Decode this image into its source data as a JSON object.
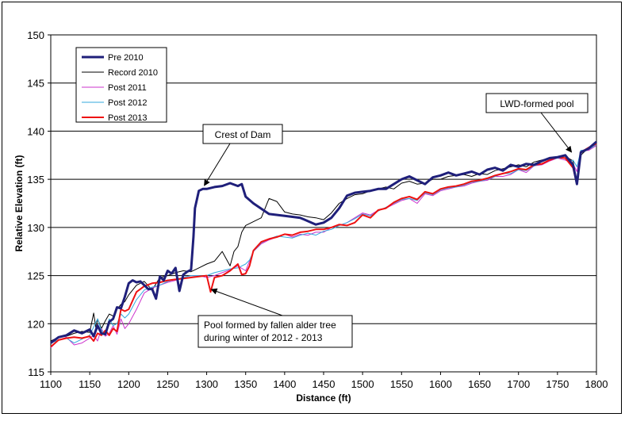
{
  "chart_data": {
    "type": "line",
    "title": "",
    "xlabel": "Distance (ft)",
    "ylabel": "Relative Elevation (ft)",
    "xlim": [
      1100,
      1800
    ],
    "ylim": [
      115,
      150
    ],
    "x_ticks": [
      "1100",
      "1150",
      "1200",
      "1250",
      "1300",
      "1350",
      "1400",
      "1450",
      "1500",
      "1550",
      "1600",
      "1650",
      "1700",
      "1750",
      "1800"
    ],
    "y_ticks": [
      "115",
      "120",
      "125",
      "130",
      "135",
      "140",
      "145",
      "150"
    ],
    "grid": "horizontal",
    "legend_position": "top-left",
    "series": [
      {
        "name": "Pre 2010",
        "color": "#1f1f7a",
        "width": 3,
        "x": [
          1100,
          1110,
          1120,
          1130,
          1140,
          1150,
          1155,
          1160,
          1165,
          1170,
          1175,
          1180,
          1185,
          1190,
          1195,
          1200,
          1205,
          1210,
          1215,
          1220,
          1225,
          1230,
          1235,
          1240,
          1245,
          1250,
          1255,
          1260,
          1265,
          1270,
          1275,
          1280,
          1283,
          1285,
          1290,
          1295,
          1300,
          1310,
          1320,
          1330,
          1340,
          1345,
          1350,
          1360,
          1380,
          1400,
          1420,
          1440,
          1450,
          1460,
          1470,
          1480,
          1490,
          1500,
          1510,
          1520,
          1530,
          1540,
          1550,
          1560,
          1570,
          1580,
          1590,
          1600,
          1610,
          1620,
          1630,
          1640,
          1650,
          1660,
          1670,
          1680,
          1690,
          1700,
          1710,
          1720,
          1730,
          1740,
          1750,
          1760,
          1765,
          1770,
          1775,
          1780,
          1790,
          1800
        ],
        "y": [
          118.0,
          118.6,
          118.8,
          119.3,
          119.0,
          119.4,
          118.7,
          119.8,
          119.0,
          118.9,
          120.2,
          120.5,
          121.7,
          121.6,
          122.8,
          124.2,
          124.5,
          124.3,
          124.4,
          124.0,
          123.6,
          123.6,
          122.6,
          124.9,
          124.5,
          125.5,
          125.2,
          125.8,
          123.4,
          125.1,
          125.4,
          125.6,
          129.0,
          132.0,
          133.8,
          134.0,
          134.0,
          134.2,
          134.3,
          134.6,
          134.3,
          134.5,
          133.2,
          132.5,
          131.4,
          131.2,
          131.0,
          130.3,
          130.5,
          131.0,
          132.0,
          133.3,
          133.6,
          133.7,
          133.8,
          134.0,
          134.0,
          134.5,
          135.0,
          135.3,
          134.9,
          134.5,
          135.2,
          135.4,
          135.7,
          135.4,
          135.6,
          135.8,
          135.5,
          136.0,
          136.2,
          135.9,
          136.5,
          136.3,
          136.6,
          136.5,
          136.9,
          137.2,
          137.3,
          137.5,
          137.0,
          136.5,
          134.5,
          137.8,
          138.2,
          138.9
        ]
      },
      {
        "name": "Record 2010",
        "color": "#000000",
        "width": 1,
        "x": [
          1100,
          1110,
          1120,
          1130,
          1140,
          1150,
          1155,
          1158,
          1160,
          1165,
          1170,
          1175,
          1180,
          1185,
          1190,
          1195,
          1200,
          1210,
          1220,
          1230,
          1240,
          1250,
          1260,
          1270,
          1280,
          1290,
          1300,
          1310,
          1320,
          1330,
          1335,
          1340,
          1345,
          1350,
          1360,
          1370,
          1380,
          1390,
          1400,
          1410,
          1420,
          1430,
          1440,
          1450,
          1460,
          1470,
          1480,
          1490,
          1500,
          1510,
          1520,
          1530,
          1540,
          1550,
          1560,
          1570,
          1580,
          1590,
          1600,
          1610,
          1620,
          1630,
          1640,
          1650,
          1660,
          1670,
          1680,
          1690,
          1700,
          1710,
          1720,
          1730,
          1740,
          1750,
          1760,
          1770,
          1775,
          1780,
          1790,
          1800
        ],
        "y": [
          118.2,
          118.6,
          118.7,
          119.0,
          119.2,
          119.1,
          121.1,
          119.5,
          120.5,
          119.5,
          120.3,
          121.0,
          120.8,
          121.5,
          122.0,
          122.3,
          123.0,
          124.0,
          124.4,
          123.5,
          124.8,
          125.0,
          125.3,
          125.5,
          125.4,
          125.8,
          126.2,
          126.5,
          127.5,
          126.0,
          127.5,
          128.0,
          129.5,
          130.2,
          130.6,
          131.0,
          133.0,
          132.7,
          131.6,
          131.4,
          131.3,
          131.1,
          131.0,
          130.8,
          131.5,
          132.5,
          133.0,
          133.4,
          133.5,
          133.8,
          134.0,
          134.2,
          134.0,
          134.6,
          134.8,
          134.5,
          134.6,
          135.0,
          135.0,
          135.3,
          135.4,
          135.5,
          135.3,
          135.6,
          135.5,
          135.9,
          136.1,
          136.3,
          136.5,
          136.3,
          136.8,
          137.0,
          137.2,
          137.3,
          137.4,
          136.9,
          134.6,
          137.5,
          138.3,
          138.8
        ]
      },
      {
        "name": "Post 2011",
        "color": "#cc33cc",
        "width": 1,
        "x": [
          1100,
          1110,
          1120,
          1130,
          1140,
          1150,
          1155,
          1160,
          1165,
          1170,
          1175,
          1180,
          1185,
          1190,
          1195,
          1200,
          1210,
          1220,
          1230,
          1240,
          1250,
          1260,
          1270,
          1280,
          1290,
          1300,
          1310,
          1320,
          1330,
          1340,
          1350,
          1355,
          1360,
          1370,
          1380,
          1390,
          1400,
          1410,
          1420,
          1430,
          1440,
          1450,
          1460,
          1470,
          1480,
          1490,
          1500,
          1510,
          1520,
          1530,
          1540,
          1550,
          1560,
          1570,
          1580,
          1590,
          1600,
          1610,
          1620,
          1630,
          1640,
          1650,
          1660,
          1670,
          1680,
          1690,
          1700,
          1710,
          1720,
          1730,
          1740,
          1750,
          1760,
          1770,
          1775,
          1780,
          1790,
          1800
        ],
        "y": [
          117.5,
          118.3,
          118.6,
          117.8,
          118.0,
          118.5,
          118.8,
          118.2,
          119.5,
          118.7,
          119.0,
          119.8,
          118.9,
          120.5,
          119.5,
          120.0,
          121.5,
          123.2,
          123.7,
          124.0,
          124.3,
          124.5,
          124.8,
          125.0,
          125.0,
          124.8,
          125.0,
          125.3,
          125.6,
          126.0,
          125.5,
          126.5,
          127.5,
          128.3,
          128.7,
          129.0,
          129.3,
          129.0,
          129.3,
          129.2,
          129.5,
          129.5,
          130.0,
          130.2,
          130.5,
          131.0,
          131.5,
          131.3,
          131.8,
          132.0,
          132.4,
          132.8,
          133.0,
          132.5,
          133.5,
          133.3,
          133.8,
          134.0,
          134.2,
          134.3,
          134.6,
          134.8,
          134.9,
          135.3,
          135.3,
          135.5,
          136.0,
          135.7,
          136.4,
          136.5,
          136.9,
          137.2,
          137.0,
          136.6,
          135.8,
          138.0,
          138.0,
          138.5
        ]
      },
      {
        "name": "Post 2012",
        "color": "#33aadd",
        "width": 1,
        "x": [
          1100,
          1110,
          1120,
          1130,
          1140,
          1150,
          1160,
          1165,
          1170,
          1175,
          1180,
          1185,
          1190,
          1195,
          1200,
          1210,
          1220,
          1230,
          1240,
          1250,
          1260,
          1270,
          1280,
          1290,
          1300,
          1310,
          1320,
          1330,
          1340,
          1350,
          1355,
          1360,
          1370,
          1380,
          1390,
          1400,
          1410,
          1420,
          1430,
          1440,
          1450,
          1460,
          1470,
          1480,
          1490,
          1500,
          1510,
          1520,
          1530,
          1540,
          1550,
          1560,
          1570,
          1580,
          1590,
          1600,
          1610,
          1620,
          1630,
          1640,
          1650,
          1660,
          1670,
          1680,
          1690,
          1700,
          1710,
          1720,
          1730,
          1740,
          1750,
          1760,
          1765,
          1770,
          1775,
          1780,
          1790,
          1800
        ],
        "y": [
          118.0,
          118.3,
          118.5,
          118.0,
          118.4,
          118.8,
          120.5,
          119.3,
          119.0,
          120.5,
          119.8,
          120.0,
          121.0,
          120.6,
          121.0,
          122.5,
          123.5,
          123.8,
          124.0,
          124.4,
          124.6,
          124.8,
          125.0,
          125.0,
          125.0,
          125.3,
          125.5,
          125.7,
          125.8,
          126.2,
          126.6,
          127.5,
          128.4,
          128.8,
          129.1,
          129.0,
          128.9,
          129.2,
          129.4,
          129.2,
          129.6,
          129.8,
          130.2,
          130.5,
          130.9,
          131.4,
          131.2,
          131.7,
          132.1,
          132.5,
          132.9,
          133.0,
          132.8,
          133.6,
          133.4,
          133.9,
          134.1,
          134.2,
          134.4,
          134.7,
          134.8,
          135.0,
          135.3,
          135.6,
          135.6,
          136.0,
          135.9,
          136.4,
          136.6,
          137.0,
          137.2,
          137.2,
          136.8,
          137.0,
          136.3,
          138.0,
          138.1,
          138.6
        ]
      },
      {
        "name": "Post 2013",
        "color": "#ee1111",
        "width": 2,
        "x": [
          1100,
          1110,
          1120,
          1130,
          1140,
          1150,
          1155,
          1160,
          1165,
          1170,
          1175,
          1180,
          1185,
          1190,
          1195,
          1200,
          1210,
          1220,
          1230,
          1240,
          1250,
          1260,
          1270,
          1280,
          1290,
          1300,
          1305,
          1310,
          1320,
          1330,
          1340,
          1345,
          1350,
          1355,
          1360,
          1370,
          1380,
          1390,
          1400,
          1410,
          1420,
          1430,
          1440,
          1450,
          1460,
          1470,
          1480,
          1490,
          1500,
          1510,
          1520,
          1530,
          1540,
          1550,
          1560,
          1570,
          1580,
          1590,
          1600,
          1610,
          1620,
          1630,
          1640,
          1650,
          1660,
          1670,
          1680,
          1690,
          1700,
          1710,
          1720,
          1730,
          1740,
          1750,
          1760,
          1770,
          1775,
          1780,
          1790,
          1800
        ],
        "y": [
          117.6,
          118.3,
          118.5,
          118.6,
          118.5,
          118.7,
          118.2,
          119.0,
          118.8,
          119.3,
          118.8,
          119.5,
          119.2,
          121.5,
          121.3,
          121.5,
          123.3,
          123.9,
          124.2,
          124.3,
          124.5,
          124.6,
          124.7,
          124.8,
          124.9,
          125.0,
          123.3,
          124.8,
          125.0,
          125.5,
          126.2,
          125.1,
          125.2,
          126.0,
          127.6,
          128.5,
          128.8,
          129.0,
          129.3,
          129.2,
          129.5,
          129.6,
          129.8,
          129.8,
          130.0,
          130.3,
          130.2,
          130.5,
          131.3,
          131.0,
          131.8,
          132.0,
          132.6,
          133.0,
          133.2,
          132.9,
          133.7,
          133.5,
          134.0,
          134.2,
          134.3,
          134.5,
          134.8,
          134.9,
          135.1,
          135.4,
          135.6,
          135.8,
          136.1,
          136.0,
          136.5,
          136.6,
          137.0,
          137.3,
          137.2,
          136.2,
          134.5,
          137.8,
          138.3,
          138.7
        ]
      }
    ],
    "annotations": [
      {
        "text": "Crest of Dam",
        "box_x": 1300,
        "box_y": 141.0,
        "target_x": 1297,
        "target_y": 134.2
      },
      {
        "text": "LWD-formed pool",
        "box_x": 1745,
        "box_y": 141.3,
        "target_x": 1771,
        "target_y": 137.5
      },
      {
        "text": "Pool formed by fallen alder tree",
        "text2": "during winter of 2012 - 2013",
        "box_x": 1370,
        "box_y": 119.2,
        "target_x": 1302,
        "target_y": 123.8
      }
    ]
  }
}
